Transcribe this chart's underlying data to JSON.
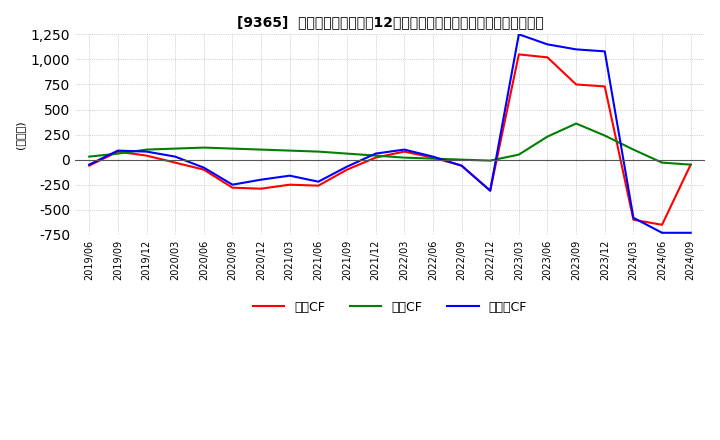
{
  "title": "[9365]  キャッシュフローの12か月移動合計の対前年同期増減額の推移",
  "ylabel": "(百万円)",
  "ylim": [
    -750,
    1250
  ],
  "yticks": [
    -750,
    -500,
    -250,
    0,
    250,
    500,
    750,
    1000,
    1250
  ],
  "dates": [
    "2019/06",
    "2019/09",
    "2019/12",
    "2020/03",
    "2020/06",
    "2020/09",
    "2020/12",
    "2021/03",
    "2021/06",
    "2021/09",
    "2021/12",
    "2022/03",
    "2022/06",
    "2022/09",
    "2022/12",
    "2023/03",
    "2023/06",
    "2023/09",
    "2023/12",
    "2024/03",
    "2024/06",
    "2024/09"
  ],
  "eigyo_cf": [
    -60,
    80,
    40,
    -30,
    -100,
    -280,
    -290,
    -250,
    -260,
    -100,
    20,
    80,
    20,
    -60,
    -310,
    1050,
    1020,
    750,
    730,
    -600,
    -650,
    -50
  ],
  "toshi_cf": [
    30,
    60,
    100,
    110,
    120,
    110,
    100,
    90,
    80,
    60,
    40,
    20,
    10,
    0,
    -10,
    50,
    230,
    360,
    240,
    100,
    -30,
    -50
  ],
  "free_cf": [
    -50,
    90,
    80,
    30,
    -80,
    -250,
    -200,
    -160,
    -220,
    -70,
    60,
    100,
    30,
    -60,
    -310,
    1250,
    1150,
    1100,
    1080,
    -580,
    -730,
    -730
  ],
  "eigyo_color": "#ff0000",
  "toshi_color": "#008000",
  "free_color": "#0000ff",
  "bg_color": "#ffffff",
  "grid_color": "#aaaaaa",
  "legend_labels": [
    "営業CF",
    "投資CF",
    "フリーCF"
  ]
}
